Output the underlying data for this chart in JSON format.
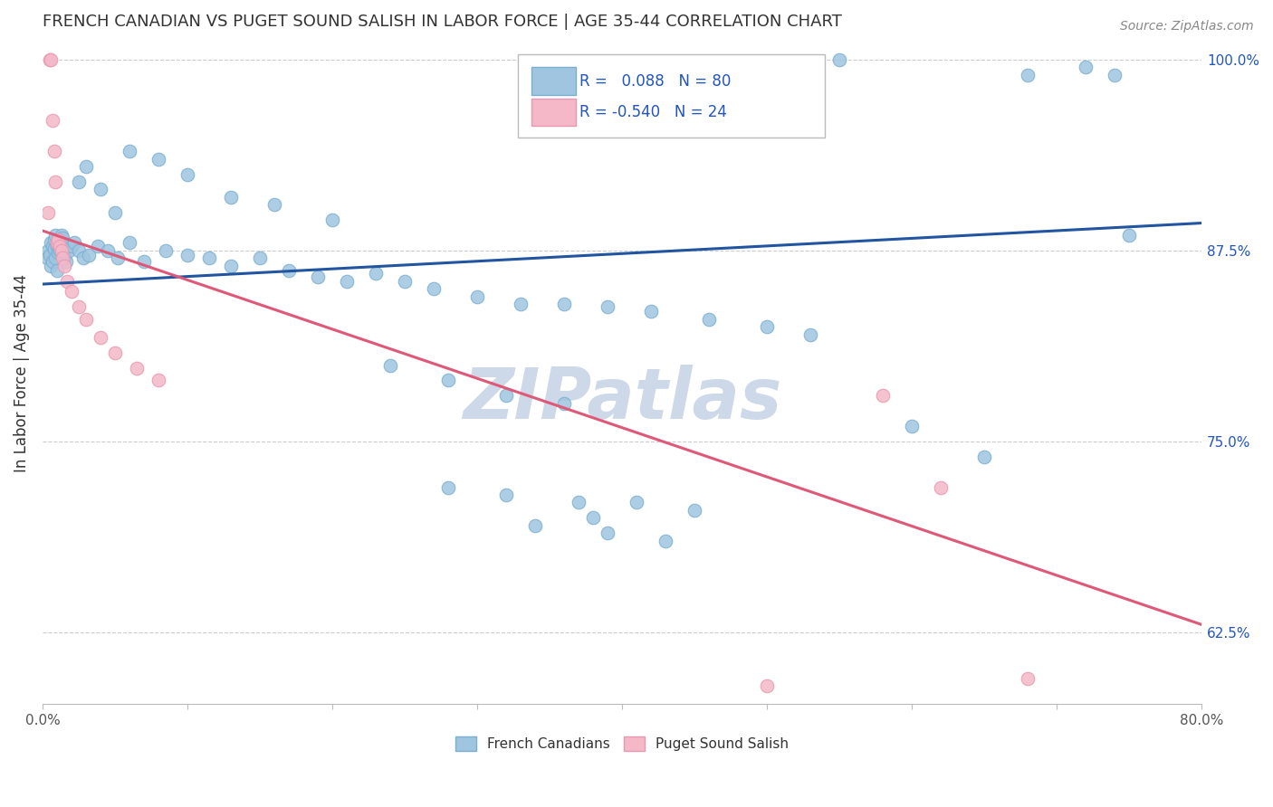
{
  "title": "FRENCH CANADIAN VS PUGET SOUND SALISH IN LABOR FORCE | AGE 35-44 CORRELATION CHART",
  "source_text": "Source: ZipAtlas.com",
  "ylabel": "In Labor Force | Age 35-44",
  "x_min": 0.0,
  "x_max": 0.8,
  "y_min": 0.578,
  "y_max": 1.012,
  "y_ticks_right": [
    0.625,
    0.75,
    0.875,
    1.0
  ],
  "y_tick_labels_right": [
    "62.5%",
    "75.0%",
    "87.5%",
    "100.0%"
  ],
  "blue_R": 0.088,
  "blue_N": 80,
  "pink_R": -0.54,
  "pink_N": 24,
  "blue_color": "#9fc5e0",
  "pink_color": "#f4b8c8",
  "blue_line_color": "#2255a0",
  "pink_line_color": "#e05878",
  "legend_text_color": "#2255c0",
  "watermark_color": "#cdd8e8",
  "watermark_text": "ZIPatlas",
  "blue_line_x0": 0.0,
  "blue_line_y0": 0.853,
  "blue_line_x1": 0.8,
  "blue_line_y1": 0.893,
  "pink_line_x0": 0.0,
  "pink_line_y0": 0.888,
  "pink_line_x1": 0.8,
  "pink_line_y1": 0.63,
  "blue_scatter_x": [
    0.003,
    0.004,
    0.005,
    0.006,
    0.006,
    0.007,
    0.007,
    0.008,
    0.008,
    0.009,
    0.009,
    0.01,
    0.01,
    0.011,
    0.011,
    0.012,
    0.013,
    0.014,
    0.015,
    0.016,
    0.018,
    0.02,
    0.022,
    0.025,
    0.028,
    0.032,
    0.038,
    0.045,
    0.052,
    0.06,
    0.07,
    0.085,
    0.1,
    0.115,
    0.13,
    0.15,
    0.17,
    0.19,
    0.21,
    0.23,
    0.25,
    0.27,
    0.3,
    0.33,
    0.36,
    0.39,
    0.42,
    0.46,
    0.5,
    0.53,
    0.025,
    0.03,
    0.04,
    0.05,
    0.06,
    0.08,
    0.1,
    0.13,
    0.16,
    0.2,
    0.24,
    0.28,
    0.32,
    0.36,
    0.28,
    0.32,
    0.37,
    0.41,
    0.45,
    0.38,
    0.34,
    0.39,
    0.43,
    0.68,
    0.72,
    0.55,
    0.74,
    0.75,
    0.6,
    0.65
  ],
  "blue_scatter_y": [
    0.87,
    0.875,
    0.872,
    0.865,
    0.88,
    0.868,
    0.878,
    0.882,
    0.876,
    0.87,
    0.885,
    0.862,
    0.878,
    0.874,
    0.88,
    0.875,
    0.885,
    0.883,
    0.87,
    0.868,
    0.875,
    0.878,
    0.88,
    0.875,
    0.87,
    0.872,
    0.878,
    0.875,
    0.87,
    0.88,
    0.868,
    0.875,
    0.872,
    0.87,
    0.865,
    0.87,
    0.862,
    0.858,
    0.855,
    0.86,
    0.855,
    0.85,
    0.845,
    0.84,
    0.84,
    0.838,
    0.835,
    0.83,
    0.825,
    0.82,
    0.92,
    0.93,
    0.915,
    0.9,
    0.94,
    0.935,
    0.925,
    0.91,
    0.905,
    0.895,
    0.8,
    0.79,
    0.78,
    0.775,
    0.72,
    0.715,
    0.71,
    0.71,
    0.705,
    0.7,
    0.695,
    0.69,
    0.685,
    0.99,
    0.995,
    1.0,
    0.99,
    0.885,
    0.76,
    0.74
  ],
  "pink_scatter_x": [
    0.004,
    0.005,
    0.006,
    0.007,
    0.008,
    0.009,
    0.01,
    0.011,
    0.012,
    0.013,
    0.014,
    0.015,
    0.017,
    0.02,
    0.025,
    0.03,
    0.04,
    0.05,
    0.065,
    0.08,
    0.58,
    0.62,
    0.68,
    0.5
  ],
  "pink_scatter_y": [
    0.9,
    1.0,
    1.0,
    0.96,
    0.94,
    0.92,
    0.88,
    0.882,
    0.878,
    0.875,
    0.87,
    0.865,
    0.855,
    0.848,
    0.838,
    0.83,
    0.818,
    0.808,
    0.798,
    0.79,
    0.78,
    0.72,
    0.595,
    0.59
  ]
}
